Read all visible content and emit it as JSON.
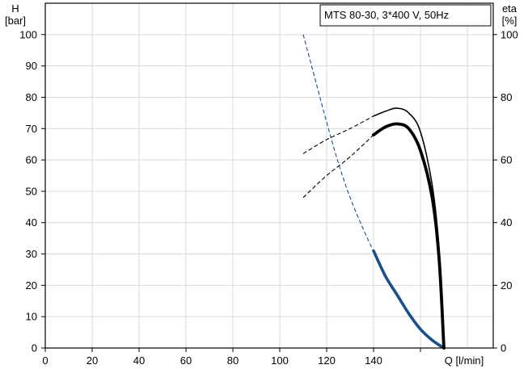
{
  "chart_data": {
    "type": "line",
    "title": "MTS 80-30, 3*400 V, 50Hz",
    "left_axis_label": [
      "H",
      "[bar]"
    ],
    "right_axis_label": [
      "eta",
      "[%]"
    ],
    "xlabel": "Q [l/min]",
    "xlim": [
      0,
      160
    ],
    "x_ticks": [
      0,
      20,
      40,
      60,
      80,
      100,
      120,
      140
    ],
    "ylim": [
      0,
      110
    ],
    "y_ticks": [
      0,
      10,
      20,
      30,
      40,
      50,
      60,
      70,
      80,
      90,
      100
    ],
    "right_ylim": [
      0,
      110
    ],
    "right_y_ticks": [
      0,
      20,
      40,
      60,
      80,
      100
    ],
    "grid": true,
    "series": [
      {
        "role": "H curve",
        "axis": "left",
        "color": "#1a4f8b",
        "dashed_x": [
          110,
          115,
          120,
          125,
          130,
          135,
          138,
          140
        ],
        "dashed_y": [
          100,
          86,
          72,
          59,
          48,
          39,
          34,
          31
        ],
        "solid_x": [
          140,
          145,
          150,
          155,
          160,
          165,
          170
        ],
        "solid_y": [
          31,
          23,
          17,
          11,
          6,
          2.5,
          0
        ]
      },
      {
        "role": "eta curve 1",
        "axis": "right",
        "color": "#000000",
        "dashed_x": [
          110,
          120,
          130,
          140
        ],
        "dashed_y": [
          62,
          66.5,
          70,
          74
        ],
        "solid_x": [
          140,
          145,
          150,
          155,
          160,
          165,
          168,
          170
        ],
        "solid_y": [
          74,
          75.5,
          76.5,
          75,
          69,
          52,
          31,
          0
        ]
      },
      {
        "role": "eta curve 2",
        "axis": "right",
        "color": "#000000",
        "dashed_x": [
          110,
          120,
          130,
          140
        ],
        "dashed_y": [
          48,
          55,
          61,
          68
        ],
        "solid_x": [
          140,
          145,
          150,
          155,
          160,
          165,
          168,
          170
        ],
        "solid_y": [
          68,
          70.5,
          71.5,
          70,
          63,
          48,
          28,
          0
        ]
      }
    ]
  }
}
